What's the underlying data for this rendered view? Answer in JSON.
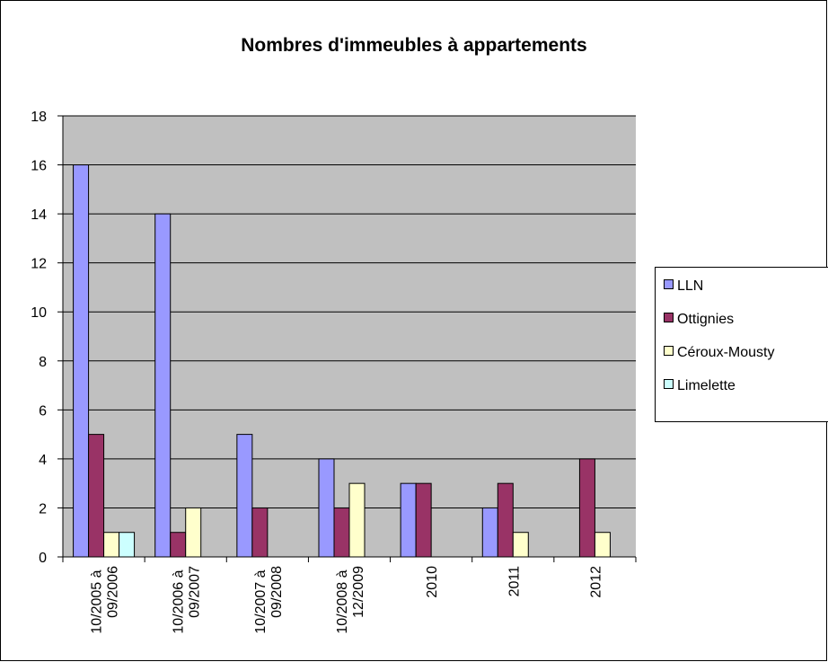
{
  "chart_data": {
    "type": "bar",
    "title": "Nombres d'immeubles à appartements",
    "categories": [
      "10/2005 à 09/2006",
      "10/2006 à 09/2007",
      "10/2007 à 09/2008",
      "10/2008 à 12/2009",
      "2010",
      "2011",
      "2012"
    ],
    "series": [
      {
        "name": "LLN",
        "color": "#9999ff",
        "values": [
          16,
          14,
          5,
          4,
          3,
          2,
          0
        ]
      },
      {
        "name": "Ottignies",
        "color": "#993366",
        "values": [
          5,
          1,
          2,
          2,
          3,
          3,
          4
        ]
      },
      {
        "name": "Céroux-Mousty",
        "color": "#ffffcc",
        "values": [
          1,
          2,
          0,
          3,
          0,
          1,
          1
        ]
      },
      {
        "name": "Limelette",
        "color": "#ccffff",
        "values": [
          1,
          0,
          0,
          0,
          0,
          0,
          0
        ]
      }
    ],
    "ylim": [
      0,
      18
    ],
    "yticks": [
      0,
      2,
      4,
      6,
      8,
      10,
      12,
      14,
      16,
      18
    ],
    "grid": true,
    "legend": "right"
  }
}
